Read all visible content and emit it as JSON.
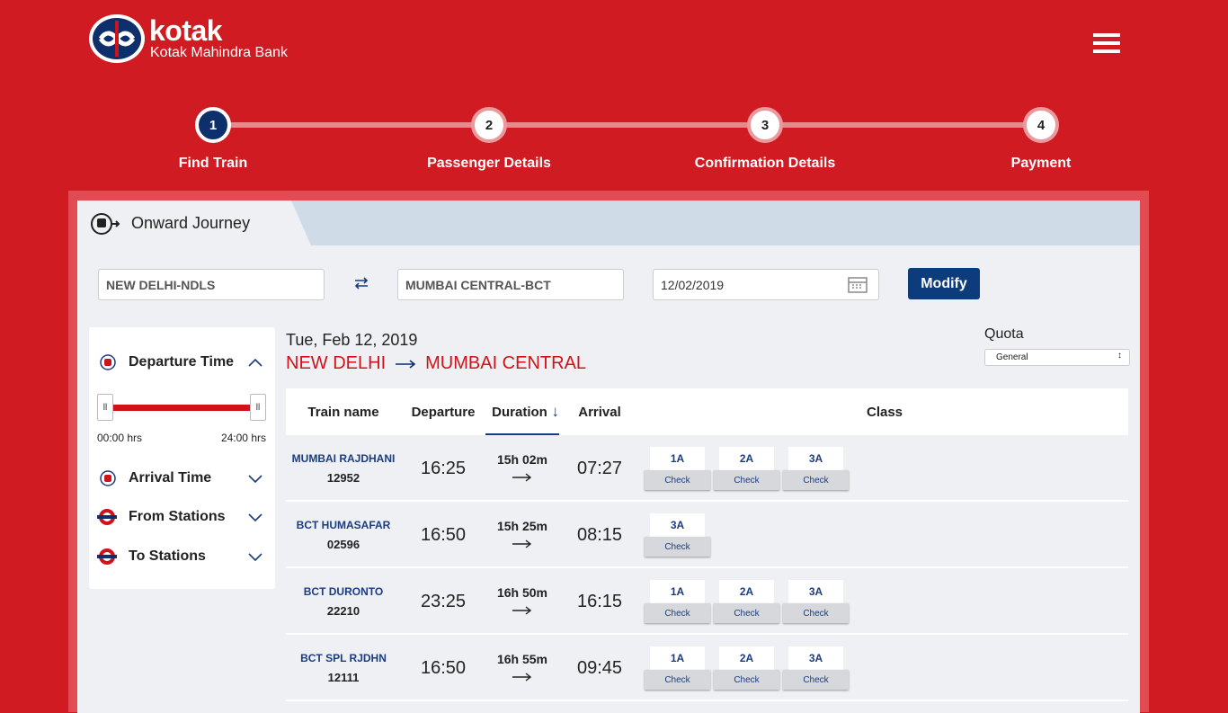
{
  "brand": {
    "name": "kotak",
    "subtitle": "Kotak Mahindra Bank"
  },
  "steps": [
    {
      "number": "1",
      "label": "Find Train"
    },
    {
      "number": "2",
      "label": "Passenger Details"
    },
    {
      "number": "3",
      "label": "Confirmation Details"
    },
    {
      "number": "4",
      "label": "Payment"
    }
  ],
  "journey_tab": "Onward Journey",
  "search": {
    "from": "NEW DELHI-NDLS",
    "to": "MUMBAI CENTRAL-BCT",
    "date": "12/02/2019",
    "button": "Modify"
  },
  "filters": {
    "departure": {
      "title": "Departure Time",
      "min": "00:00 hrs",
      "max": "24:00 hrs"
    },
    "others": [
      "Arrival Time",
      "From Stations",
      "To Stations"
    ]
  },
  "results": {
    "date": "Tue, Feb 12, 2019",
    "from": "NEW DELHI",
    "to": "MUMBAI CENTRAL"
  },
  "quota": {
    "label": "Quota",
    "value": "General"
  },
  "table": {
    "headers": [
      "Train name",
      "Departure",
      "Duration",
      "Arrival",
      "Class"
    ],
    "check_label": "Check",
    "rows": [
      {
        "name": "MUMBAI RAJDHANI",
        "number": "12952",
        "departure": "16:25",
        "duration": "15h 02m",
        "arrival": "07:27",
        "classes": [
          "1A",
          "2A",
          "3A"
        ]
      },
      {
        "name": "BCT HUMASAFAR",
        "number": "02596",
        "departure": "16:50",
        "duration": "15h 25m",
        "arrival": "08:15",
        "classes": [
          "3A"
        ]
      },
      {
        "name": "BCT DURONTO",
        "number": "22210",
        "departure": "23:25",
        "duration": "16h 50m",
        "arrival": "16:15",
        "classes": [
          "1A",
          "2A",
          "3A"
        ]
      },
      {
        "name": "BCT SPL RJDHN",
        "number": "12111",
        "departure": "16:50",
        "duration": "16h 55m",
        "arrival": "09:45",
        "classes": [
          "1A",
          "2A",
          "3A"
        ]
      }
    ]
  }
}
